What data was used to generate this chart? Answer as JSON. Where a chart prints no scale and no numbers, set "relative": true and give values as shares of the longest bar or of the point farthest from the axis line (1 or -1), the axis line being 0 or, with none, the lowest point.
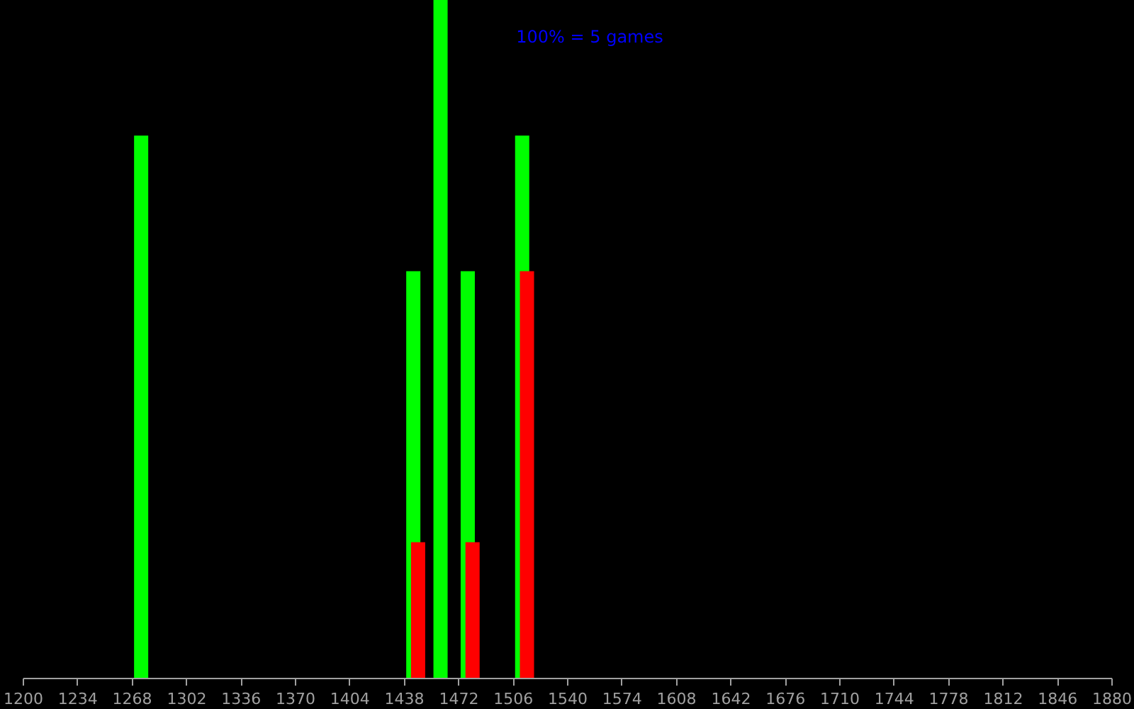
{
  "chart_data": {
    "type": "bar",
    "relative": true,
    "annotations": [
      "100% = 5 games"
    ],
    "xlim": [
      1200,
      1880
    ],
    "xticks": [
      1200,
      1234,
      1268,
      1302,
      1336,
      1370,
      1404,
      1438,
      1472,
      1506,
      1540,
      1574,
      1608,
      1642,
      1676,
      1710,
      1744,
      1778,
      1812,
      1846,
      1880
    ],
    "series": [
      {
        "color": "#00ff00",
        "x": [
          1274,
          1444,
          1461,
          1478,
          1512
        ],
        "values": [
          0.8,
          0.6,
          1,
          0.6,
          0.8
        ]
      },
      {
        "color": "#ff0000",
        "x": [
          1447,
          1481,
          1515
        ],
        "values": [
          0.2,
          0.2,
          0.6
        ]
      }
    ],
    "grid": false
  }
}
